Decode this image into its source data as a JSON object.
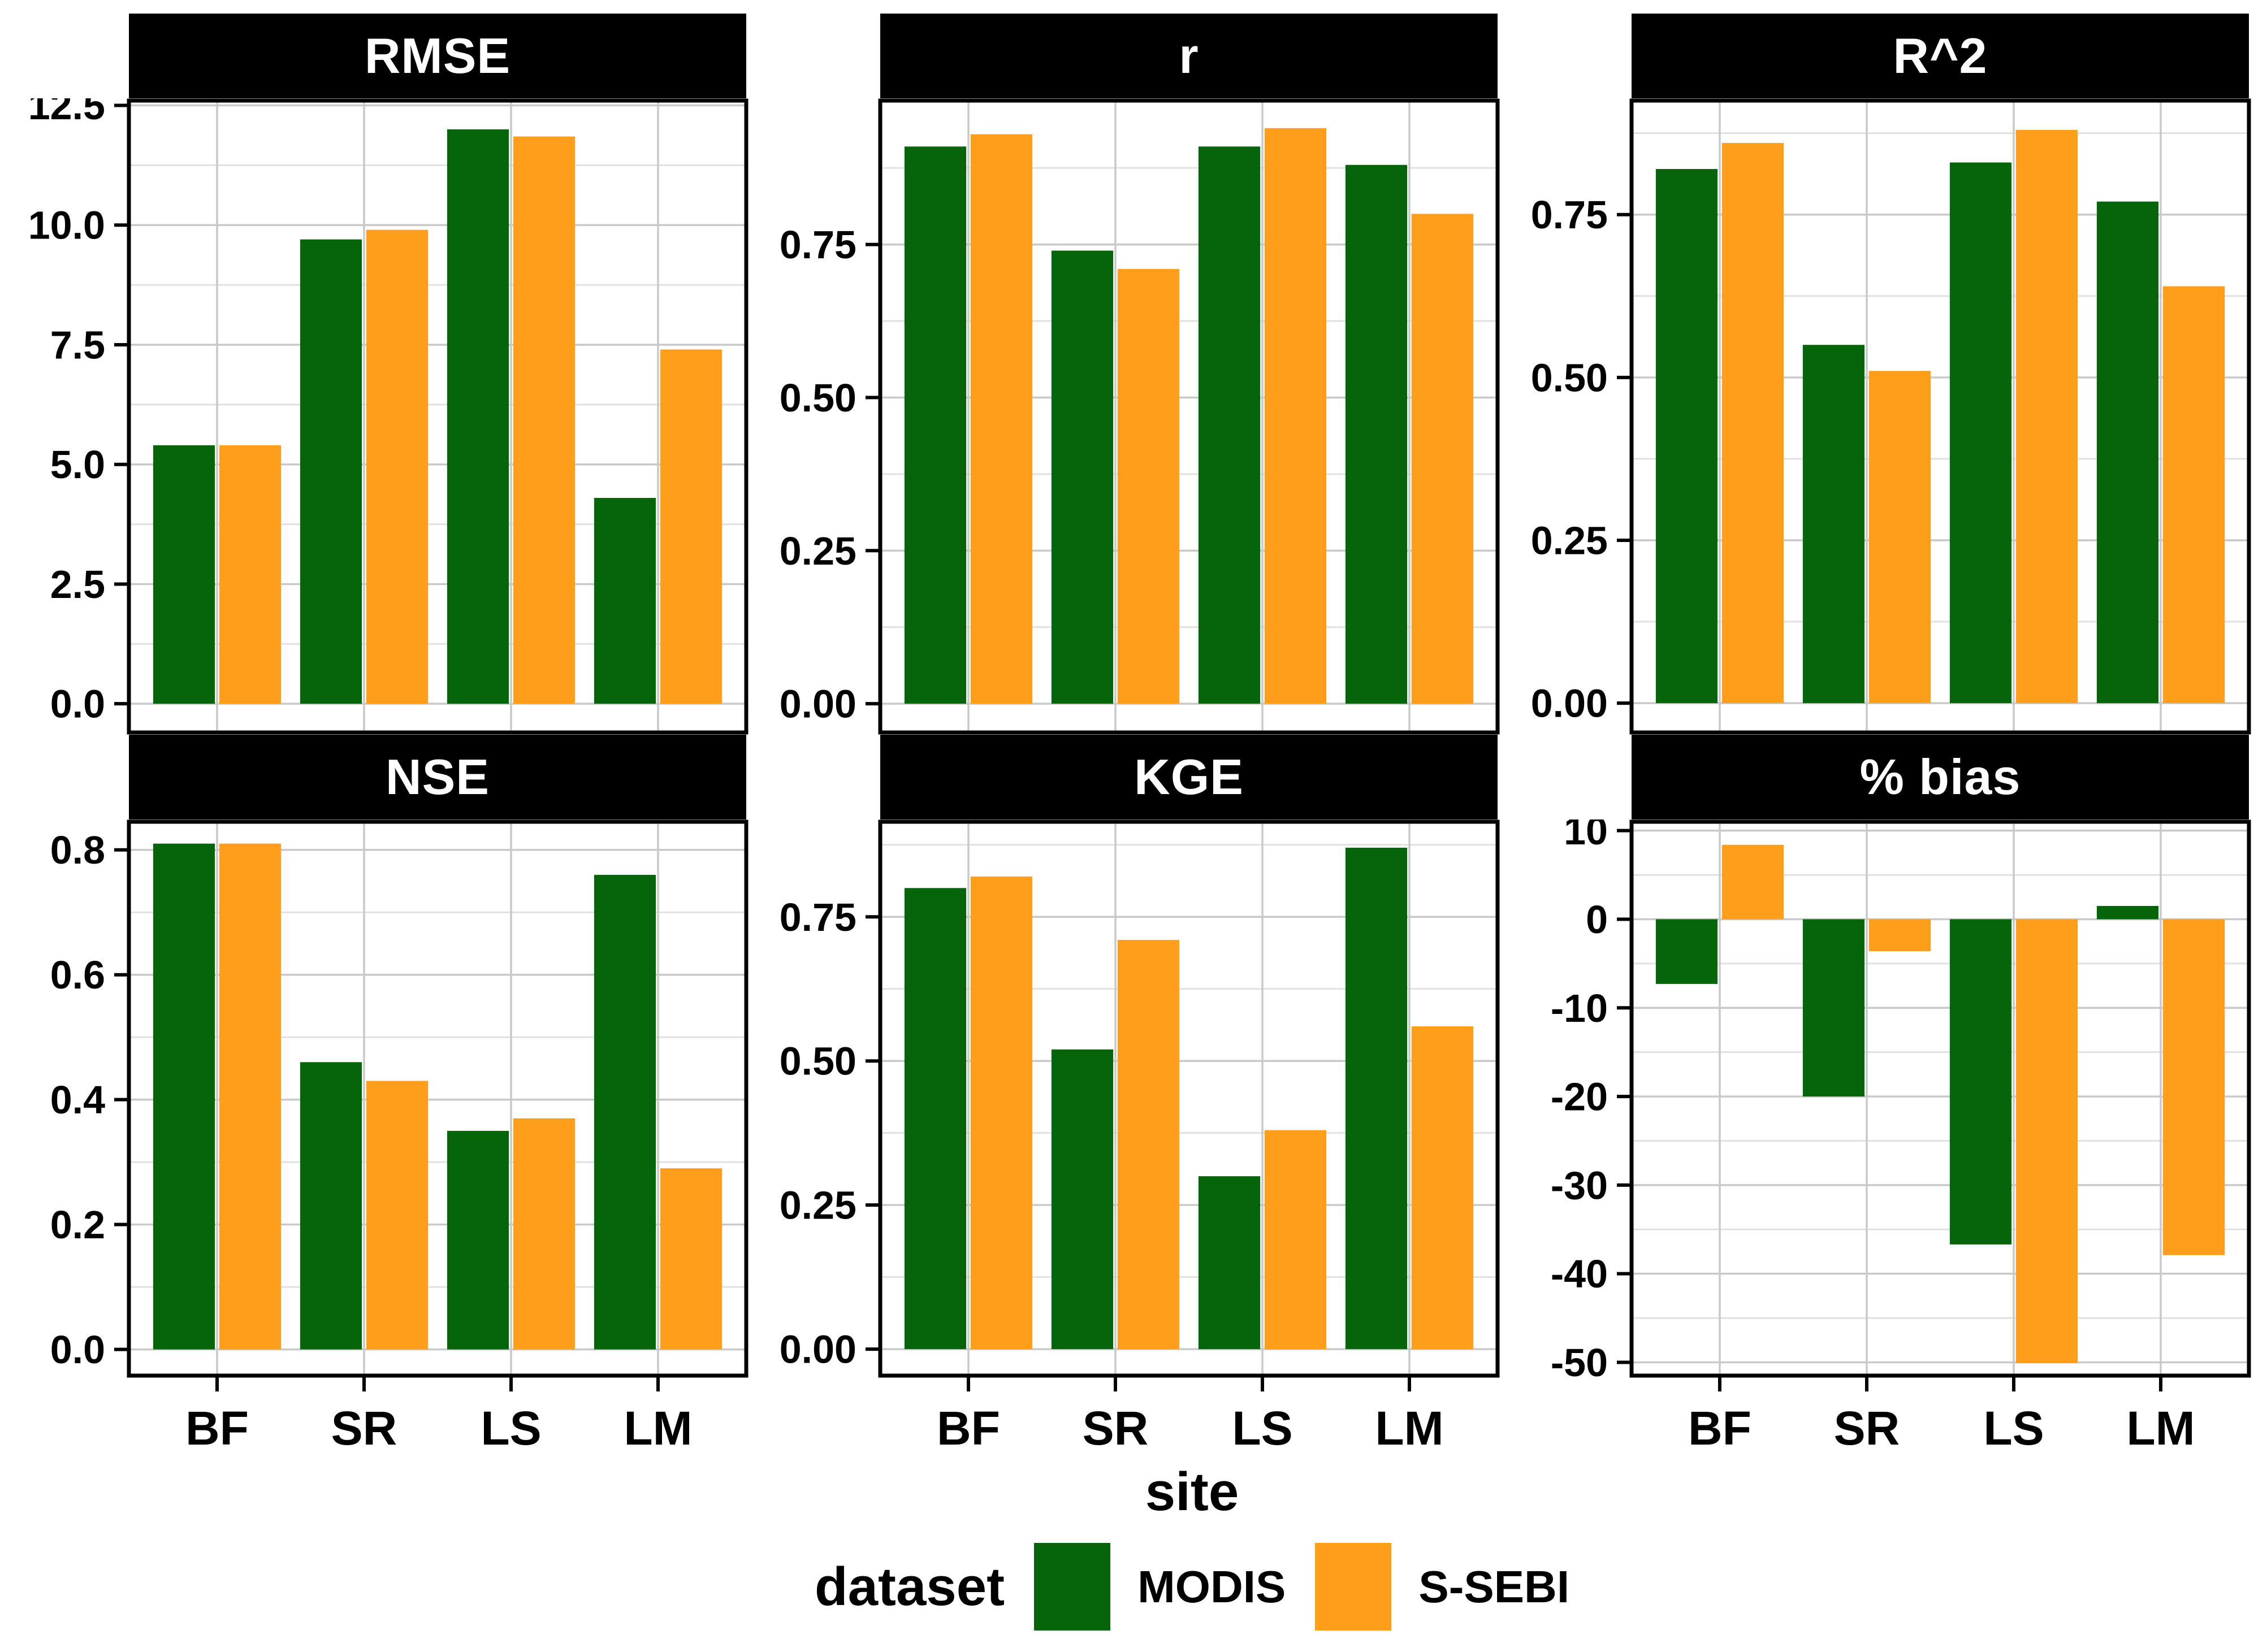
{
  "colors": {
    "modis": "#06650A",
    "ssebi": "#FF9E1A",
    "strip_bg": "#000000",
    "strip_text": "#FFFFFF",
    "grid_major": "#C9C9C9",
    "grid_minor": "#E1E1E1",
    "panel_border": "#000000",
    "axis_text": "#000000"
  },
  "axis": {
    "x_title": "site"
  },
  "legend": {
    "title": "dataset",
    "items": [
      {
        "label": "MODIS",
        "color_key": "modis"
      },
      {
        "label": "S-SEBI",
        "color_key": "ssebi"
      }
    ]
  },
  "chart_data": [
    {
      "type": "bar",
      "title": "RMSE",
      "categories": [
        "BF",
        "SR",
        "LS",
        "LM"
      ],
      "series": [
        {
          "name": "MODIS",
          "values": [
            5.4,
            9.7,
            12.0,
            4.3
          ]
        },
        {
          "name": "S-SEBI",
          "values": [
            5.4,
            9.9,
            11.85,
            7.4
          ]
        }
      ],
      "ylim": [
        -0.6,
        12.6
      ],
      "yticks": [
        0,
        2.5,
        5,
        7.5,
        10,
        12.5
      ],
      "ytick_labels": [
        "0.0",
        "2.5",
        "5.0",
        "7.5",
        "10.0",
        "12.5"
      ],
      "minor_ticks": [
        1.25,
        3.75,
        6.25,
        8.75,
        11.25
      ],
      "grid": true,
      "legend_position": "bottom",
      "show_x_labels": false
    },
    {
      "type": "bar",
      "title": "r",
      "categories": [
        "BF",
        "SR",
        "LS",
        "LM"
      ],
      "series": [
        {
          "name": "MODIS",
          "values": [
            0.91,
            0.74,
            0.91,
            0.88
          ]
        },
        {
          "name": "S-SEBI",
          "values": [
            0.93,
            0.71,
            0.94,
            0.8
          ]
        }
      ],
      "ylim": [
        -0.047,
        0.985
      ],
      "yticks": [
        0,
        0.25,
        0.5,
        0.75
      ],
      "ytick_labels": [
        "0.00",
        "0.25",
        "0.50",
        "0.75"
      ],
      "minor_ticks": [
        0.125,
        0.375,
        0.625,
        0.875
      ],
      "grid": true,
      "legend_position": "bottom",
      "show_x_labels": false
    },
    {
      "type": "bar",
      "title": "R^2",
      "categories": [
        "BF",
        "SR",
        "LS",
        "LM"
      ],
      "series": [
        {
          "name": "MODIS",
          "values": [
            0.82,
            0.55,
            0.83,
            0.77
          ]
        },
        {
          "name": "S-SEBI",
          "values": [
            0.86,
            0.51,
            0.88,
            0.64
          ]
        }
      ],
      "ylim": [
        -0.045,
        0.925
      ],
      "yticks": [
        0,
        0.25,
        0.5,
        0.75
      ],
      "ytick_labels": [
        "0.00",
        "0.25",
        "0.50",
        "0.75"
      ],
      "minor_ticks": [
        0.125,
        0.375,
        0.625,
        0.875
      ],
      "grid": true,
      "legend_position": "bottom",
      "show_x_labels": false
    },
    {
      "type": "bar",
      "title": "NSE",
      "categories": [
        "BF",
        "SR",
        "LS",
        "LM"
      ],
      "series": [
        {
          "name": "MODIS",
          "values": [
            0.81,
            0.46,
            0.35,
            0.76
          ]
        },
        {
          "name": "S-SEBI",
          "values": [
            0.81,
            0.43,
            0.37,
            0.29
          ]
        }
      ],
      "ylim": [
        -0.042,
        0.845
      ],
      "yticks": [
        0,
        0.2,
        0.4,
        0.6,
        0.8
      ],
      "ytick_labels": [
        "0.0",
        "0.2",
        "0.4",
        "0.6",
        "0.8"
      ],
      "minor_ticks": [
        0.1,
        0.3,
        0.5,
        0.7
      ],
      "grid": true,
      "legend_position": "bottom",
      "show_x_labels": true
    },
    {
      "type": "bar",
      "title": "KGE",
      "categories": [
        "BF",
        "SR",
        "LS",
        "LM"
      ],
      "series": [
        {
          "name": "MODIS",
          "values": [
            0.8,
            0.52,
            0.3,
            0.87
          ]
        },
        {
          "name": "S-SEBI",
          "values": [
            0.82,
            0.71,
            0.38,
            0.56
          ]
        }
      ],
      "ylim": [
        -0.046,
        0.915
      ],
      "yticks": [
        0,
        0.25,
        0.5,
        0.75
      ],
      "ytick_labels": [
        "0.00",
        "0.25",
        "0.50",
        "0.75"
      ],
      "minor_ticks": [
        0.125,
        0.375,
        0.625,
        0.875
      ],
      "grid": true,
      "legend_position": "bottom",
      "show_x_labels": true
    },
    {
      "type": "bar",
      "title": "% bias",
      "categories": [
        "BF",
        "SR",
        "LS",
        "LM"
      ],
      "series": [
        {
          "name": "MODIS",
          "values": [
            -7.3,
            -20.0,
            -36.7,
            1.5
          ]
        },
        {
          "name": "S-SEBI",
          "values": [
            8.4,
            -3.6,
            -50.1,
            -37.9
          ]
        }
      ],
      "ylim": [
        -51.5,
        11.0
      ],
      "yticks": [
        10,
        0,
        -10,
        -20,
        -30,
        -40,
        -50
      ],
      "ytick_labels": [
        "10",
        "0",
        "-10",
        "-20",
        "-30",
        "-40",
        "-50"
      ],
      "minor_ticks": [
        5,
        -5,
        -15,
        -25,
        -35,
        -45
      ],
      "grid": true,
      "legend_position": "bottom",
      "show_x_labels": true
    }
  ]
}
